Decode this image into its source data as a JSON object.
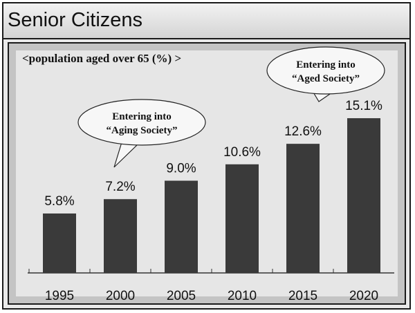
{
  "page": {
    "title": "Senior Citizens"
  },
  "chart_data": {
    "type": "bar",
    "title": "<population aged over 65 (%) >",
    "categories": [
      "1995",
      "2000",
      "2005",
      "2010",
      "2015",
      "2020"
    ],
    "values": [
      5.8,
      7.2,
      9.0,
      10.6,
      12.6,
      15.1
    ],
    "value_labels": [
      "5.8%",
      "7.2%",
      "9.0%",
      "10.6%",
      "12.6%",
      "15.1%"
    ],
    "ylim": [
      0,
      20
    ],
    "grid": false,
    "bar_color": "#3a3a3a",
    "annotations": [
      {
        "category": "2000",
        "lines": [
          "Entering into",
          "“Aging Society”"
        ]
      },
      {
        "category": "2020",
        "lines": [
          "Entering into",
          "“Aged Society”"
        ]
      }
    ]
  }
}
